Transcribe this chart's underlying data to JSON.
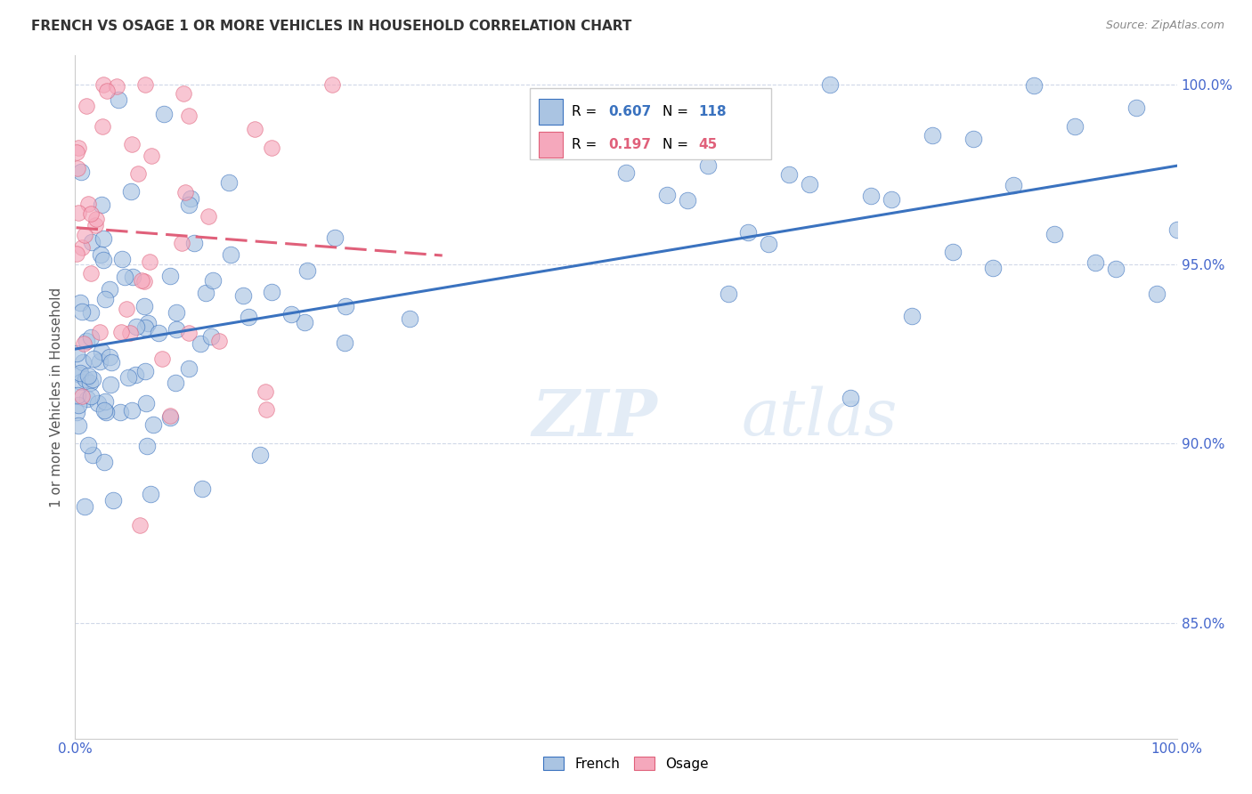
{
  "title": "FRENCH VS OSAGE 1 OR MORE VEHICLES IN HOUSEHOLD CORRELATION CHART",
  "source": "Source: ZipAtlas.com",
  "ylabel": "1 or more Vehicles in Household",
  "xlim": [
    0,
    1.0
  ],
  "ylim": [
    0.818,
    1.008
  ],
  "xticks": [
    0.0,
    0.1,
    0.2,
    0.3,
    0.4,
    0.5,
    0.6,
    0.7,
    0.8,
    0.9,
    1.0
  ],
  "xticklabels": [
    "0.0%",
    "",
    "",
    "",
    "",
    "",
    "",
    "",
    "",
    "",
    "100.0%"
  ],
  "yticks": [
    0.85,
    0.9,
    0.95,
    1.0
  ],
  "yticklabels": [
    "85.0%",
    "90.0%",
    "95.0%",
    "100.0%"
  ],
  "french_color": "#aac4e2",
  "osage_color": "#f5a8bc",
  "french_line_color": "#3a72bf",
  "osage_line_color": "#e0607a",
  "watermark_zip": "ZIP",
  "watermark_atlas": "atlas",
  "background_color": "#ffffff",
  "grid_color": "#d0d8e8",
  "title_color": "#333333",
  "source_color": "#888888",
  "tick_color": "#4466cc",
  "ylabel_color": "#555555"
}
